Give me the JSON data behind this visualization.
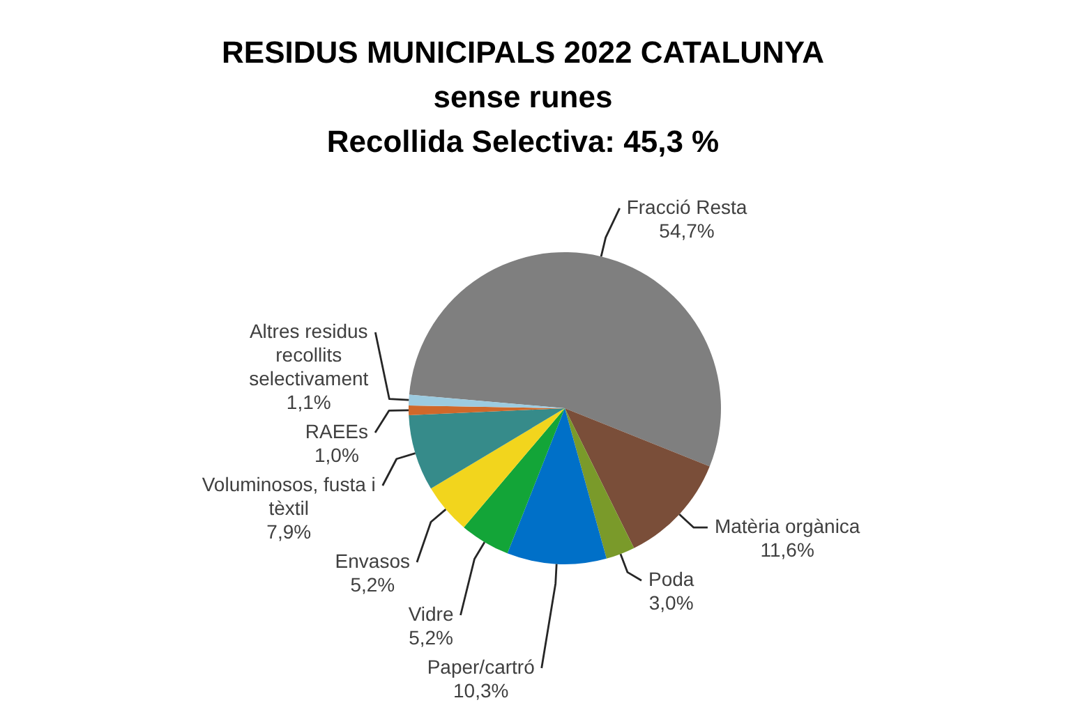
{
  "chart_data": {
    "type": "pie",
    "title": "RESIDUS MUNICIPALS 2022 CATALUNYA",
    "subtitle": "sense runes\nRecollida Selectiva: 45,3 %",
    "categories": [
      "Fracció Resta",
      "Matèria orgànica",
      "Poda",
      "Paper/cartró",
      "Vidre",
      "Envasos",
      "Voluminosos, fusta i tèxtil",
      "RAEEs",
      "Altres residus recollits selectivament"
    ],
    "values": [
      54.7,
      11.6,
      3.0,
      10.3,
      5.2,
      5.2,
      7.9,
      1.0,
      1.1
    ],
    "colors": [
      "#7f7f7f",
      "#7a4e39",
      "#7a9a2a",
      "#0070c8",
      "#13a538",
      "#f2d51d",
      "#368b8a",
      "#d0682a",
      "#9ccbe0"
    ],
    "value_labels": [
      "54,7%",
      "11,6%",
      "3,0%",
      "10,3%",
      "5,2%",
      "5,2%",
      "7,9%",
      "1,0%",
      "1,1%"
    ]
  }
}
